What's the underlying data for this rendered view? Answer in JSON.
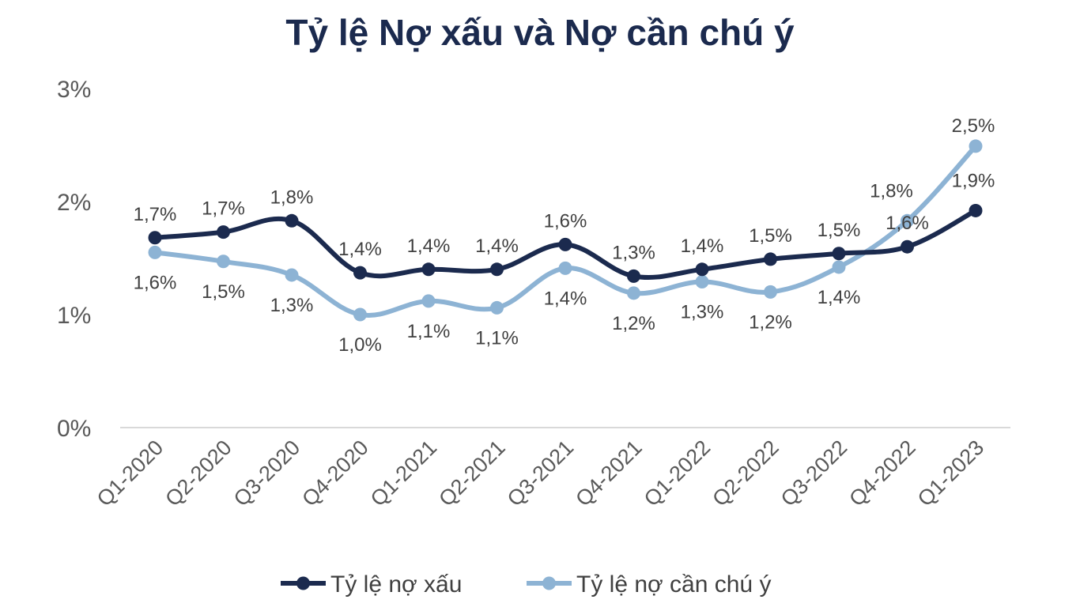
{
  "chart_data": {
    "type": "line",
    "title": "Tỷ lệ Nợ xấu và Nợ cần chú ý",
    "xlabel": "",
    "ylabel": "",
    "ylim": [
      0,
      3
    ],
    "y_ticks": [
      "0%",
      "1%",
      "2%",
      "3%"
    ],
    "grid": false,
    "legend_position": "bottom",
    "categories": [
      "Q1-2020",
      "Q2-2020",
      "Q3-2020",
      "Q4-2020",
      "Q1-2021",
      "Q2-2021",
      "Q3-2021",
      "Q4-2021",
      "Q1-2022",
      "Q2-2022",
      "Q3-2022",
      "Q4-2022",
      "Q1-2023"
    ],
    "series": [
      {
        "name": "Tỷ lệ nợ xấu",
        "color": "#1b2a4e",
        "values": [
          1.68,
          1.73,
          1.83,
          1.37,
          1.4,
          1.4,
          1.62,
          1.34,
          1.4,
          1.49,
          1.54,
          1.6,
          1.92
        ],
        "labels": [
          "1,7%",
          "1,7%",
          "1,8%",
          "1,4%",
          "1,4%",
          "1,4%",
          "1,6%",
          "1,3%",
          "1,4%",
          "1,5%",
          "1,5%",
          "1,6%",
          "1,9%"
        ]
      },
      {
        "name": "Tỷ lệ nợ cần chú ý",
        "color": "#8db3d4",
        "values": [
          1.55,
          1.47,
          1.35,
          1.0,
          1.12,
          1.06,
          1.41,
          1.19,
          1.29,
          1.2,
          1.42,
          1.83,
          2.49
        ],
        "labels": [
          "1,6%",
          "1,5%",
          "1,3%",
          "1,0%",
          "1,1%",
          "1,1%",
          "1,4%",
          "1,2%",
          "1,3%",
          "1,2%",
          "1,4%",
          "1,8%",
          "2,5%"
        ]
      }
    ]
  }
}
